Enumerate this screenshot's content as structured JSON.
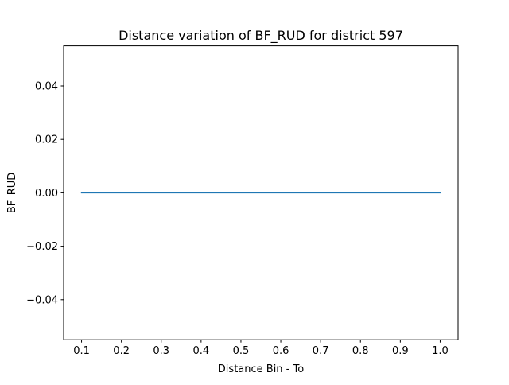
{
  "chart_data": {
    "type": "line",
    "title": "Distance variation of BF_RUD for district 597",
    "xlabel": "Distance Bin - To",
    "ylabel": "BF_RUD",
    "xlim": [
      0.055,
      1.045
    ],
    "ylim": [
      -0.055,
      0.055
    ],
    "xticks": [
      0.1,
      0.2,
      0.3,
      0.4,
      0.5,
      0.6,
      0.7,
      0.8,
      0.9,
      1.0
    ],
    "xtick_labels": [
      "0.1",
      "0.2",
      "0.3",
      "0.4",
      "0.5",
      "0.6",
      "0.7",
      "0.8",
      "0.9",
      "1.0"
    ],
    "yticks": [
      -0.04,
      -0.02,
      0.0,
      0.02,
      0.04
    ],
    "ytick_labels": [
      "−0.04",
      "−0.02",
      "0.00",
      "0.02",
      "0.04"
    ],
    "grid": false,
    "series": [
      {
        "color": "#1f77b4",
        "x": [
          0.1,
          0.2,
          0.3,
          0.4,
          0.5,
          0.6,
          0.7,
          0.8,
          0.9,
          1.0
        ],
        "y": [
          0,
          0,
          0,
          0,
          0,
          0,
          0,
          0,
          0,
          0
        ]
      }
    ]
  }
}
